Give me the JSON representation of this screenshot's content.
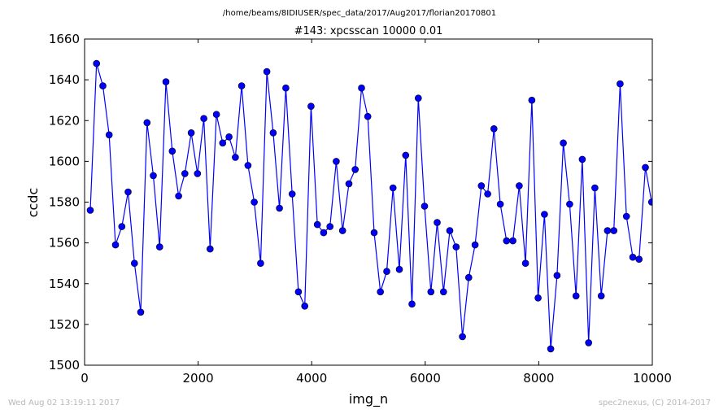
{
  "header": {
    "path": "/home/beams/8IDIUSER/spec_data/2017/Aug2017/florian20170801"
  },
  "footer": {
    "timestamp": "Wed Aug 02 13:19:11 2017",
    "credit": "spec2nexus, (C) 2014-2017"
  },
  "colors": {
    "series": "#0000ff",
    "marker": "#0000ff",
    "axes": "#000000",
    "footer_text": "#b8b8b8"
  },
  "chart_data": {
    "type": "line",
    "title": "#143: xpcsscan 10000 0.01",
    "xlabel": "img_n",
    "ylabel": "ccdc",
    "xlim": [
      0,
      10000
    ],
    "ylim": [
      1500,
      1660
    ],
    "xticks": [
      0,
      2000,
      4000,
      6000,
      8000,
      10000
    ],
    "yticks": [
      1500,
      1520,
      1540,
      1560,
      1580,
      1600,
      1620,
      1640,
      1660
    ],
    "grid": false,
    "legend": "none",
    "series": [
      {
        "marker": "circle",
        "x": [
          100,
          211,
          322,
          433,
          544,
          656,
          767,
          878,
          989,
          1100,
          1211,
          1322,
          1433,
          1544,
          1656,
          1767,
          1878,
          1989,
          2100,
          2211,
          2322,
          2433,
          2544,
          2656,
          2767,
          2878,
          2989,
          3100,
          3211,
          3322,
          3433,
          3544,
          3656,
          3767,
          3878,
          3989,
          4100,
          4211,
          4322,
          4433,
          4544,
          4656,
          4767,
          4878,
          4989,
          5100,
          5211,
          5322,
          5433,
          5544,
          5656,
          5767,
          5878,
          5989,
          6100,
          6211,
          6322,
          6433,
          6544,
          6656,
          6767,
          6878,
          6989,
          7100,
          7211,
          7322,
          7433,
          7544,
          7656,
          7767,
          7878,
          7989,
          8100,
          8211,
          8322,
          8433,
          8544,
          8656,
          8767,
          8878,
          8989,
          9100,
          9211,
          9322,
          9433,
          9544,
          9656,
          9767,
          9878,
          9989
        ],
        "y": [
          1576,
          1648,
          1637,
          1613,
          1559,
          1568,
          1585,
          1550,
          1526,
          1619,
          1593,
          1558,
          1639,
          1605,
          1583,
          1594,
          1614,
          1594,
          1621,
          1557,
          1623,
          1609,
          1612,
          1602,
          1637,
          1598,
          1580,
          1550,
          1644,
          1614,
          1577,
          1636,
          1584,
          1536,
          1529,
          1627,
          1569,
          1565,
          1568,
          1600,
          1566,
          1589,
          1596,
          1636,
          1622,
          1565,
          1536,
          1546,
          1587,
          1547,
          1603,
          1530,
          1631,
          1578,
          1536,
          1570,
          1536,
          1566,
          1558,
          1514,
          1543,
          1559,
          1588,
          1584,
          1616,
          1579,
          1561,
          1561,
          1588,
          1550,
          1630,
          1533,
          1574,
          1508,
          1544,
          1609,
          1579,
          1534,
          1601,
          1511,
          1587,
          1534,
          1566,
          1566,
          1638,
          1573,
          1553,
          1552,
          1597,
          1580
        ]
      }
    ]
  }
}
